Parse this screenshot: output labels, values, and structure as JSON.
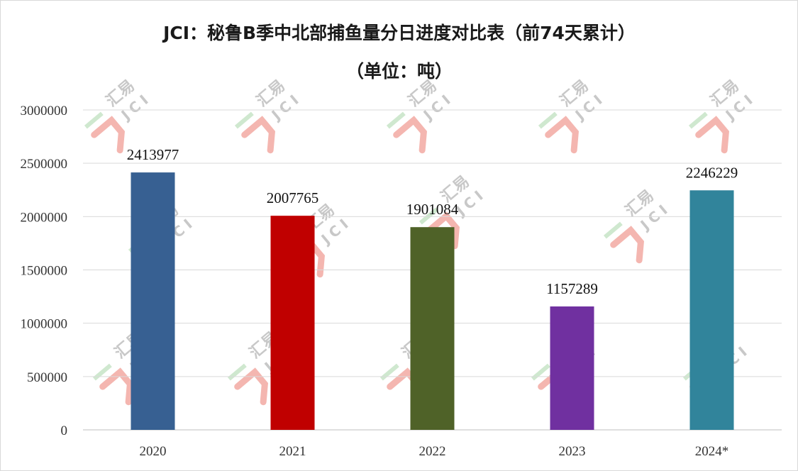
{
  "chart_data": {
    "type": "bar",
    "title": "JCI：秘鲁B季中北部捕鱼量分日进度对比表（前74天累计）",
    "subtitle": "（单位：吨）",
    "xlabel": "",
    "ylabel": "",
    "categories": [
      "2020",
      "2021",
      "2022",
      "2023",
      "2024*"
    ],
    "values": [
      2413977,
      2007765,
      1901084,
      1157289,
      2246229
    ],
    "data_labels": [
      "2413977",
      "2007765",
      "1901084",
      "1157289",
      "2246229"
    ],
    "bar_colors": [
      "#376092",
      "#c00000",
      "#4f6228",
      "#7030a0",
      "#31849b"
    ],
    "ylim": [
      0,
      3000000
    ],
    "y_ticks": [
      0,
      500000,
      1000000,
      1500000,
      2000000,
      2500000,
      3000000
    ],
    "y_tick_labels": [
      "0",
      "500000",
      "1000000",
      "1500000",
      "2000000",
      "2500000",
      "3000000"
    ],
    "grid": true,
    "legend": "none"
  },
  "watermark": {
    "text": "汇易",
    "sub_text": "JCI",
    "colors": {
      "logo_red": "#f4b6b0",
      "logo_green": "#cfe8cf",
      "text_gray": "#c8c8c8"
    }
  }
}
